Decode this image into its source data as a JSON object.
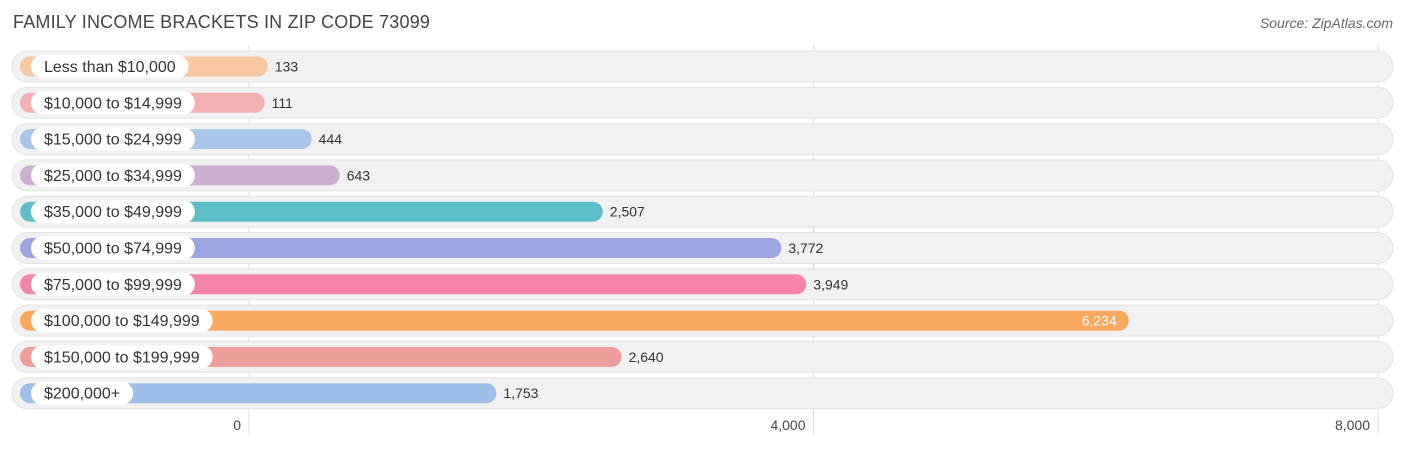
{
  "title": "FAMILY INCOME BRACKETS IN ZIP CODE 73099",
  "source": "Source: ZipAtlas.com",
  "chart_data": {
    "type": "bar",
    "orientation": "horizontal",
    "title": "FAMILY INCOME BRACKETS IN ZIP CODE 73099",
    "categories": [
      "Less than $10,000",
      "$10,000 to $14,999",
      "$15,000 to $24,999",
      "$25,000 to $34,999",
      "$35,000 to $49,999",
      "$50,000 to $74,999",
      "$75,000 to $99,999",
      "$100,000 to $149,999",
      "$150,000 to $199,999",
      "$200,000+"
    ],
    "values": [
      133,
      111,
      444,
      643,
      2507,
      3772,
      3949,
      6234,
      2640,
      1753
    ],
    "value_labels": [
      "133",
      "111",
      "444",
      "643",
      "2,507",
      "3,772",
      "3,949",
      "6,234",
      "2,640",
      "1,753"
    ],
    "colors": [
      "#f9c8a0",
      "#f2b0b0",
      "#a9c6ea",
      "#cfaed4",
      "#5fbfc9",
      "#9ea6e2",
      "#f584aa",
      "#f9a95d",
      "#eb9e9a",
      "#9dbfea"
    ],
    "xlim": [
      0,
      8000
    ],
    "x_ticks": [
      0,
      4000,
      8000
    ],
    "x_tick_labels": [
      "0",
      "4,000",
      "8,000"
    ],
    "xlabel": "",
    "ylabel": "",
    "grid": true
  }
}
